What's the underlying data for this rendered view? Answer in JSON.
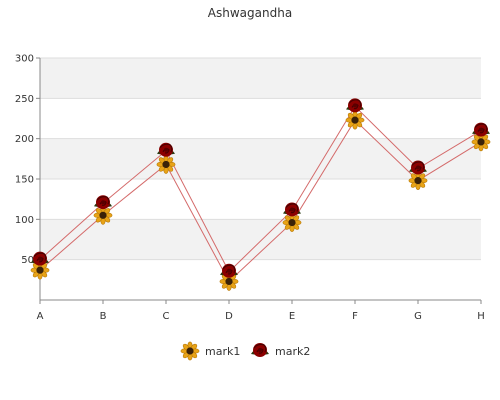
{
  "chart_data": {
    "type": "line",
    "title": "Ashwagandha",
    "categories": [
      "A",
      "B",
      "C",
      "D",
      "E",
      "F",
      "G",
      "H"
    ],
    "series": [
      {
        "name": "mark1",
        "values": [
          37,
          105,
          168,
          23,
          96,
          223,
          148,
          196
        ],
        "color": "#d46a6a",
        "marker": "sunflower-icon"
      },
      {
        "name": "mark2",
        "values": [
          50,
          120,
          185,
          35,
          111,
          240,
          163,
          210
        ],
        "color": "#d46a6a",
        "marker": "rose-icon"
      }
    ],
    "ylim": [
      0,
      300
    ],
    "yticks": [
      50,
      100,
      150,
      200,
      250,
      300
    ],
    "grid": true,
    "legend_position": "bottom"
  }
}
